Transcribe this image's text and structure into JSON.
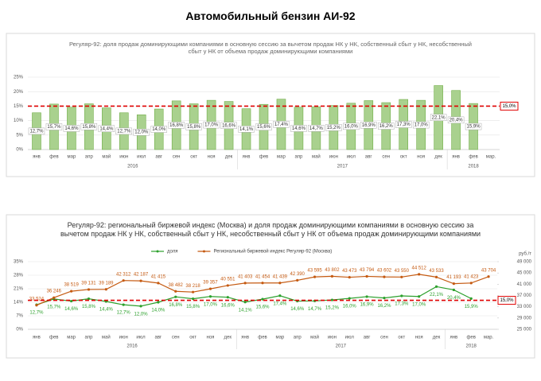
{
  "header": {
    "title": "Автомобильный бензин АИ-92"
  },
  "chart_data": [
    {
      "type": "bar",
      "title": "Регуляр-92: доля продаж доминирующими компаниями в основную сессию за вычетом продаж НК у НК, собственный сбыт у НК, несобственный сбыт у НК от объема продаж доминирующими компаниями",
      "categories": [
        "янв",
        "фев",
        "мар",
        "апр",
        "май",
        "июн",
        "июл",
        "авг",
        "сен",
        "окт",
        "ноя",
        "дек",
        "янв",
        "фев",
        "мар",
        "апр",
        "май",
        "июн",
        "июл",
        "авг",
        "сен",
        "окт",
        "ноя",
        "дек",
        "янв",
        "фев",
        "мар."
      ],
      "x_groups": [
        "2016",
        "2017",
        "2018"
      ],
      "values": [
        12.7,
        15.7,
        14.6,
        15.8,
        14.4,
        12.7,
        12.0,
        14.0,
        16.8,
        15.8,
        17.0,
        16.6,
        14.1,
        15.6,
        17.4,
        14.6,
        14.7,
        15.2,
        16.0,
        16.9,
        16.2,
        17.3,
        17.0,
        22.1,
        20.4,
        15.9,
        null
      ],
      "value_labels": [
        "12,7%",
        "15,7%",
        "14,6%",
        "15,8%",
        "14,4%",
        "12,7%",
        "12,0%",
        "14,0%",
        "16,8%",
        "15,8%",
        "17,0%",
        "16,6%",
        "14,1%",
        "15,6%",
        "17,4%",
        "14,6%",
        "14,7%",
        "15,2%",
        "16,0%",
        "16,9%",
        "16,2%",
        "17,3%",
        "17,0%",
        "22,1%",
        "20,4%",
        "15,9%",
        null
      ],
      "color": "#a9d18e",
      "ylim": [
        0,
        25
      ],
      "yticks": [
        {
          "value": 0,
          "label": "0%"
        },
        {
          "value": 5,
          "label": "5%"
        },
        {
          "value": 10,
          "label": "10%"
        },
        {
          "value": 15,
          "label": "15%"
        },
        {
          "value": 20,
          "label": "20%"
        },
        {
          "value": 25,
          "label": "25%"
        }
      ],
      "reference_line": {
        "value": 15,
        "label": "15,0%",
        "color": "#e00000"
      },
      "grid": true
    },
    {
      "type": "line",
      "title": "Регуляр-92: региональный биржевой индекс (Москва) и доля продаж доминирующими компаниями в основную сессию за вычетом продаж НК у НК, собственный сбыт у НК, несобственный сбыт у НК от объема продаж доминирующими компаниями",
      "categories": [
        "янв",
        "фев",
        "мар",
        "апр",
        "май",
        "июн",
        "июл",
        "авг",
        "сен",
        "окт",
        "ноя",
        "дек",
        "янв",
        "фев",
        "мар",
        "апр",
        "май",
        "июн",
        "июл",
        "авг",
        "сен",
        "окт",
        "ноя",
        "дек",
        "янв",
        "фев",
        "мар."
      ],
      "x_groups": [
        "2016",
        "2017",
        "2018"
      ],
      "series": [
        {
          "name": "доля",
          "color": "#2ca02c",
          "values": [
            12.7,
            15.7,
            14.6,
            15.8,
            14.4,
            12.7,
            12.0,
            14.0,
            16.8,
            15.8,
            17.0,
            16.6,
            14.1,
            15.6,
            17.4,
            14.6,
            14.7,
            15.2,
            16.0,
            16.9,
            16.2,
            17.3,
            17.0,
            22.1,
            20.4,
            15.9,
            null
          ],
          "value_labels": [
            "12,7%",
            "15,7%",
            "14,6%",
            "15,8%",
            "14,4%",
            "12,7%",
            "12,0%",
            "14,0%",
            "16,8%",
            "15,8%",
            "17,0%",
            "16,6%",
            "14,1%",
            "15,6%",
            "17,4%",
            "14,6%",
            "14,7%",
            "15,2%",
            "16,0%",
            "16,9%",
            "16,2%",
            "17,3%",
            "17,0%",
            "22,1%",
            "20,4%",
            "15,9%",
            null
          ]
        },
        {
          "name": "Региональный биржевой индекс Регуляр-92 (Москва)",
          "color": "#c55a11",
          "axis": "y2",
          "values": [
            33524,
            36246,
            38519,
            39131,
            39189,
            42312,
            42187,
            41415,
            38482,
            38218,
            39357,
            40551,
            41403,
            41454,
            41439,
            42390,
            43595,
            43802,
            43473,
            43794,
            43602,
            43550,
            44512,
            43533,
            41193,
            41423,
            43704
          ],
          "value_labels": [
            "33 524",
            "36 246",
            "38 519",
            "39 131",
            "39 189",
            "42 312",
            "42 187",
            "41 415",
            "38 482",
            "38 218",
            "39 357",
            "40 551",
            "41 403",
            "41 454",
            "41 439",
            "42 390",
            "43 595",
            "43 802",
            "43 473",
            "43 794",
            "43 602",
            "43 550",
            "44 512",
            "43 533",
            "41 193",
            "41 423",
            "43 704"
          ]
        }
      ],
      "ylim": [
        0,
        35
      ],
      "yticks": [
        {
          "value": 0,
          "label": "0%"
        },
        {
          "value": 7,
          "label": "7%"
        },
        {
          "value": 14,
          "label": "14%"
        },
        {
          "value": 21,
          "label": "21%"
        },
        {
          "value": 28,
          "label": "28%"
        },
        {
          "value": 35,
          "label": "35%"
        }
      ],
      "y2lim": [
        25000,
        49000
      ],
      "y2ticks": [
        {
          "value": 25000,
          "label": "25 000"
        },
        {
          "value": 29000,
          "label": "29 000"
        },
        {
          "value": 33000,
          "label": "33 000"
        },
        {
          "value": 37000,
          "label": "37 000"
        },
        {
          "value": 41000,
          "label": "41 000"
        },
        {
          "value": 45000,
          "label": "45 000"
        },
        {
          "value": 49000,
          "label": "49 000"
        }
      ],
      "y2label": "руб./т",
      "reference_line": {
        "value": 15,
        "label": "15,0%",
        "color": "#e00000"
      },
      "legend": "top",
      "grid": true
    }
  ]
}
